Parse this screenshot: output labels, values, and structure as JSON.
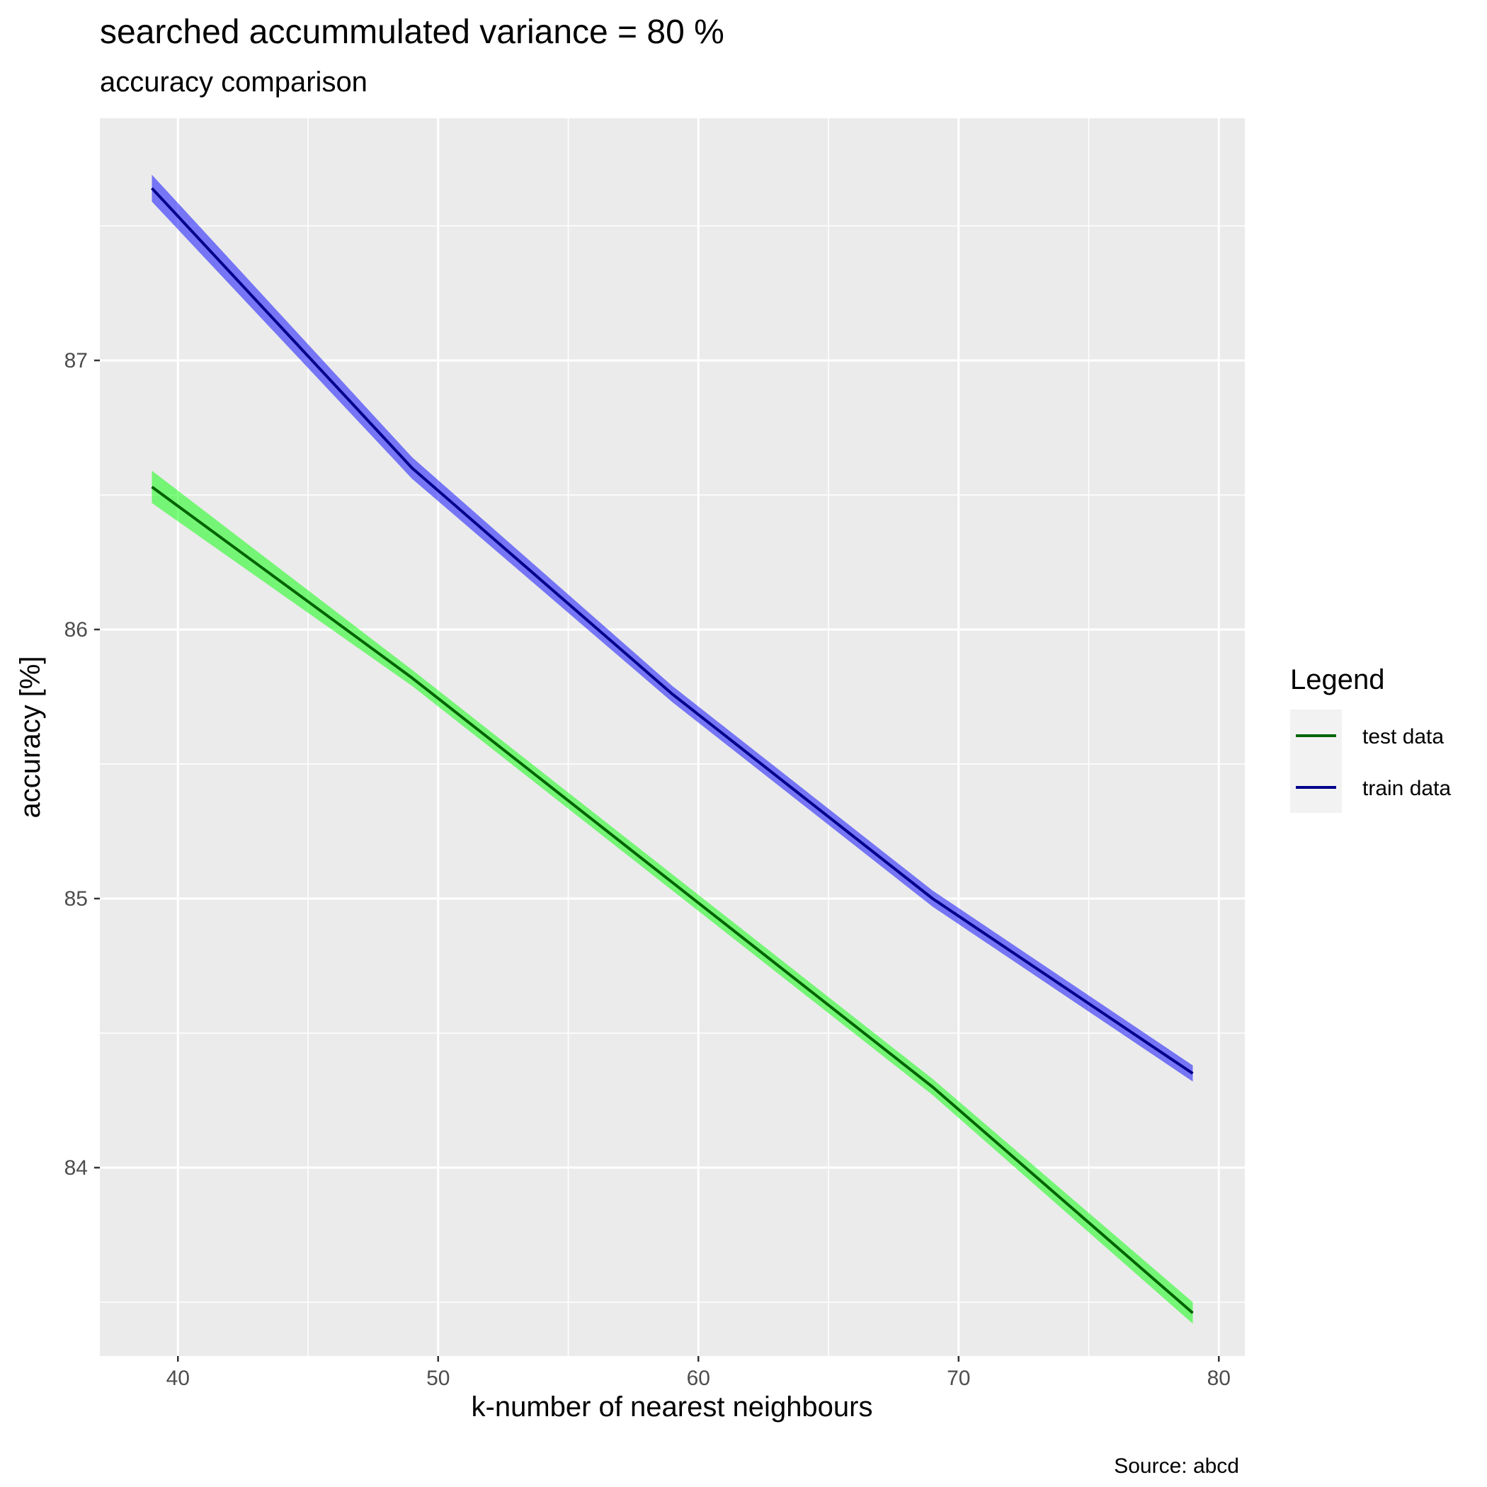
{
  "chart_data": {
    "type": "line",
    "title": "searched accummulated variance =  80 %",
    "subtitle": "accuracy comparison",
    "xlabel": "k-number of nearest neighbours",
    "ylabel": "accuracy [%]",
    "caption": "Source: abcd",
    "xlim": [
      37,
      81
    ],
    "ylim": [
      83.3,
      87.9
    ],
    "x_ticks": [
      40,
      50,
      60,
      70,
      80
    ],
    "y_ticks": [
      84,
      85,
      86,
      87
    ],
    "grid": true,
    "legend": {
      "title": "Legend",
      "position": "right"
    },
    "x": [
      39,
      49,
      59,
      69,
      79
    ],
    "series": [
      {
        "name": "test data",
        "line_color": "#006400",
        "band_color": "#00ff00",
        "values": [
          86.53,
          85.82,
          85.06,
          84.3,
          83.46
        ],
        "band_halfwidth": [
          0.06,
          0.03,
          0.03,
          0.03,
          0.04
        ]
      },
      {
        "name": "train data",
        "line_color": "#00008b",
        "band_color": "#0000ff",
        "values": [
          87.64,
          86.6,
          85.76,
          85.0,
          84.35
        ],
        "band_halfwidth": [
          0.05,
          0.04,
          0.03,
          0.03,
          0.03
        ]
      }
    ],
    "colors": {
      "panel_background": "#ebebeb",
      "grid": "#ffffff",
      "legend_key_background": "#f2f2f2"
    }
  }
}
